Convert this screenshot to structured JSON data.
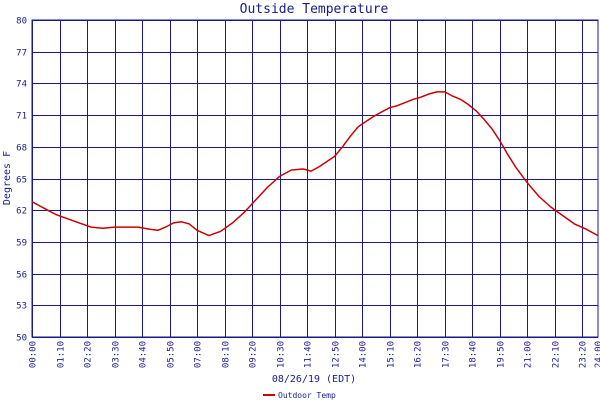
{
  "chart_data": {
    "type": "line",
    "title": "Outside Temperature",
    "xlabel": "08/26/19 (EDT)",
    "ylabel": "Degrees F",
    "ylim": [
      50,
      80
    ],
    "yticks": [
      50,
      53,
      56,
      59,
      62,
      65,
      68,
      71,
      74,
      77,
      80
    ],
    "xlim": [
      "00:00",
      "24:00"
    ],
    "xticks": [
      "00:00",
      "01:10",
      "02:20",
      "03:30",
      "04:40",
      "05:50",
      "07:00",
      "08:10",
      "09:20",
      "10:30",
      "11:40",
      "12:50",
      "14:00",
      "15:10",
      "16:20",
      "17:30",
      "18:40",
      "19:50",
      "21:00",
      "22:10",
      "23:20"
    ],
    "grid": true,
    "legend": "bottom-left",
    "colors": {
      "line": "#cc0000",
      "grid": "#1a1a8c",
      "text": "#1a1a8c"
    },
    "series": [
      {
        "name": "Outdoor Temp",
        "x": [
          "00:00",
          "00:20",
          "00:40",
          "01:00",
          "01:30",
          "02:00",
          "02:30",
          "03:00",
          "03:30",
          "04:00",
          "04:30",
          "05:00",
          "05:20",
          "05:40",
          "06:00",
          "06:20",
          "06:40",
          "07:00",
          "07:30",
          "08:00",
          "08:30",
          "09:00",
          "09:30",
          "10:00",
          "10:30",
          "11:00",
          "11:30",
          "11:50",
          "12:10",
          "12:30",
          "12:50",
          "13:10",
          "13:30",
          "13:50",
          "14:10",
          "14:30",
          "14:50",
          "15:10",
          "15:30",
          "15:50",
          "16:10",
          "16:30",
          "16:50",
          "17:10",
          "17:30",
          "17:50",
          "18:10",
          "18:30",
          "18:50",
          "19:10",
          "19:30",
          "19:50",
          "20:10",
          "20:30",
          "21:00",
          "21:30",
          "22:00",
          "22:30",
          "23:00",
          "23:30",
          "24:00"
        ],
        "y": [
          62.8,
          62.4,
          62.0,
          61.6,
          61.2,
          60.8,
          60.4,
          60.3,
          60.4,
          60.4,
          60.4,
          60.2,
          60.1,
          60.4,
          60.8,
          60.9,
          60.7,
          60.1,
          59.6,
          60.0,
          60.8,
          61.8,
          63.0,
          64.2,
          65.2,
          65.8,
          65.9,
          65.7,
          66.1,
          66.6,
          67.1,
          68.0,
          69.0,
          69.9,
          70.4,
          70.9,
          71.3,
          71.7,
          71.9,
          72.2,
          72.5,
          72.7,
          73.0,
          73.2,
          73.2,
          72.8,
          72.5,
          72.0,
          71.4,
          70.6,
          69.7,
          68.6,
          67.3,
          66.1,
          64.6,
          63.3,
          62.3,
          61.5,
          60.7,
          60.2,
          59.6
        ]
      }
    ]
  }
}
